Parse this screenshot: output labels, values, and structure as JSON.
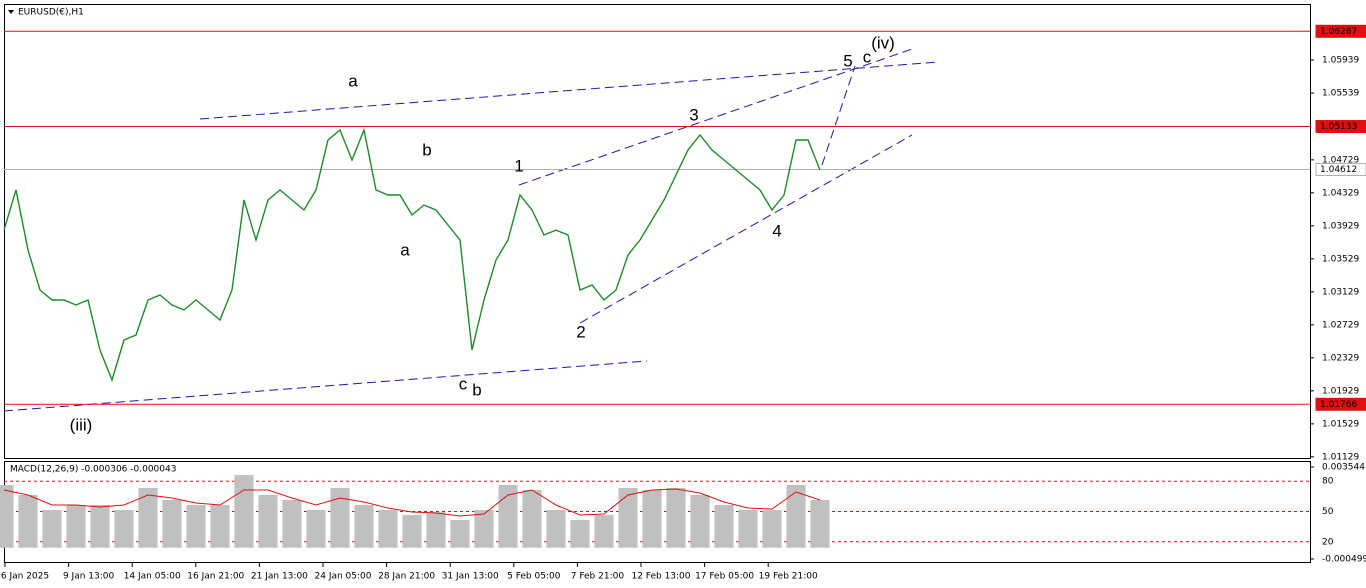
{
  "chart_data": [
    {
      "type": "line",
      "title": "EURUSD(€),H1",
      "color": "#1f8a2a",
      "values": [
        1.03878,
        1.04363,
        1.03636,
        1.03151,
        1.0303,
        1.0303,
        1.02969,
        1.0303,
        1.02424,
        1.0206,
        1.02545,
        1.02606,
        1.0303,
        1.03091,
        1.02969,
        1.02909,
        1.0303,
        1.02909,
        1.02788,
        1.03151,
        1.04242,
        1.03757,
        1.04242,
        1.04363,
        1.04242,
        1.04121,
        1.04363,
        1.04969,
        1.05091,
        1.04727,
        1.05091,
        1.04363,
        1.04303,
        1.04303,
        1.0406,
        1.04182,
        1.04121,
        1.03939,
        1.03757,
        1.02424,
        1.0303,
        1.03515,
        1.03757,
        1.04303,
        1.04121,
        1.03818,
        1.03878,
        1.03818,
        1.03151,
        1.03212,
        1.0303,
        1.03151,
        1.03575,
        1.03757,
        1.04,
        1.04242,
        1.04545,
        1.04848,
        1.0503,
        1.04848,
        1.04727,
        1.04606,
        1.04485,
        1.04363,
        1.04121,
        1.04303,
        1.04969,
        1.04969,
        1.04606
      ],
      "x_labels": [
        "6 Jan 2025",
        "9 Jan 13:00",
        "14 Jan 05:00",
        "16 Jan 21:00",
        "21 Jan 13:00",
        "24 Jan 05:00",
        "28 Jan 21:00",
        "31 Jan 13:00",
        "5 Feb 05:00",
        "7 Feb 21:00",
        "12 Feb 13:00",
        "17 Feb 05:00",
        "19 Feb 21:00"
      ],
      "ylim": [
        1.01115,
        1.06618
      ],
      "yticks": [
        1.05939,
        1.05539,
        1.04729,
        1.04329,
        1.03929,
        1.03529,
        1.03129,
        1.02729,
        1.02329,
        1.01929,
        1.01529,
        1.01129
      ],
      "hlines": [
        {
          "value": 1.06287,
          "color": "#e01010"
        },
        {
          "value": 1.05133,
          "color": "#e01010"
        },
        {
          "value": 1.01766,
          "color": "#e01010"
        },
        {
          "value": 1.04612,
          "color": "#b0b0b0"
        }
      ],
      "annotations": [
        {
          "text": "a",
          "color": "#e61ee6"
        },
        {
          "text": "b",
          "color": "#000000"
        },
        {
          "text": "a",
          "color": "#000000"
        },
        {
          "text": "1",
          "color": "#000000"
        },
        {
          "text": "c",
          "color": "#000000"
        },
        {
          "text": "b",
          "color": "#e61ee6"
        },
        {
          "text": "2",
          "color": "#000000"
        },
        {
          "text": "3",
          "color": "#000000"
        },
        {
          "text": "4",
          "color": "#000000"
        },
        {
          "text": "5",
          "color": "#000000"
        },
        {
          "text": "c",
          "color": "#e61ee6"
        },
        {
          "text": "(iv)",
          "color": "#1a1ab4"
        },
        {
          "text": "(iii)",
          "color": "#1a1ab4"
        }
      ]
    },
    {
      "type": "macd",
      "title": "MACD(12,26,9) -0.000306 -0.000043",
      "histogram": {
        "color": "#c0c0c0",
        "values": [
          0.002753,
          0.002314,
          0.001655,
          0.001874,
          0.001874,
          0.001655,
          0.002621,
          0.002094,
          0.001874,
          0.001874,
          0.003193,
          0.002314,
          0.002094,
          0.001655,
          0.002621,
          0.001874,
          0.001655,
          0.001435,
          0.001567,
          0.001215,
          0.001655,
          0.002753,
          0.002534,
          0.001655,
          0.001215,
          0.001435,
          0.002621,
          0.002534,
          0.002621,
          0.002314,
          0.001874,
          0.001655,
          0.001655,
          0.002753,
          0.002094
        ]
      },
      "signal": {
        "color": "#e01010",
        "values": [
          0.002534,
          0.002314,
          0.001874,
          0.001874,
          0.001786,
          0.001874,
          0.002314,
          0.002182,
          0.001962,
          0.001874,
          0.002534,
          0.002534,
          0.002182,
          0.001874,
          0.002182,
          0.002006,
          0.001742,
          0.001567,
          0.001523,
          0.001391,
          0.001479,
          0.002314,
          0.002534,
          0.001874,
          0.001435,
          0.001479,
          0.002314,
          0.002534,
          0.002578,
          0.002402,
          0.002006,
          0.001742,
          0.001699,
          0.002446,
          0.002094
        ]
      },
      "ylim": [
        -0.000499,
        0.003544
      ],
      "yticks": [
        0.003544,
        -0.000499
      ],
      "y2lim": [
        0,
        100
      ],
      "y2ticks": [
        80,
        50,
        20
      ],
      "level_color": "#e01010"
    }
  ]
}
